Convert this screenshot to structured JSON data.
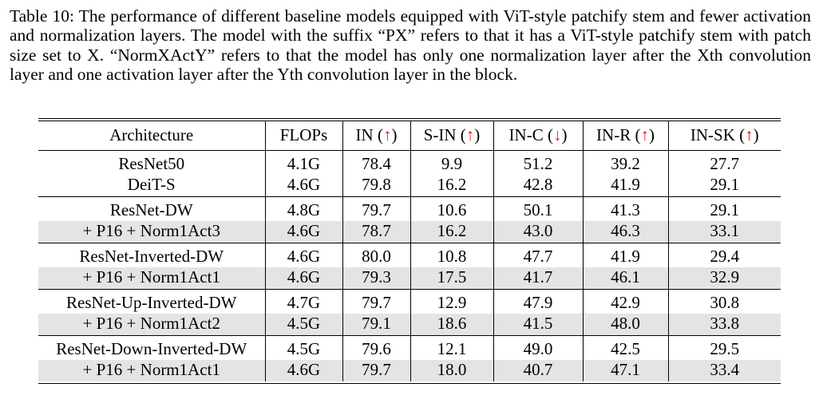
{
  "caption": {
    "label": "Table 10:",
    "text": " The performance of different baseline models equipped with ViT-style patchify stem and fewer activation and normalization layers. The model with the suffix “PX” refers to that it has a ViT-style patchify stem with patch size set to X. “NormXActY” refers to that the model has only one normalization layer after the Xth convolution layer and one activation layer after the Yth convolution layer in the block."
  },
  "table": {
    "headers": [
      {
        "label": "Architecture",
        "arrow": ""
      },
      {
        "label": "FLOPs",
        "arrow": ""
      },
      {
        "label": "IN (",
        "arrow": "↑",
        "close": ")"
      },
      {
        "label": "S-IN (",
        "arrow": "↑",
        "close": ")"
      },
      {
        "label": "IN-C (",
        "arrow": "↓",
        "close": ")"
      },
      {
        "label": "IN-R (",
        "arrow": "↑",
        "close": ")"
      },
      {
        "label": "IN-SK (",
        "arrow": "↑",
        "close": ")"
      }
    ],
    "groups": [
      {
        "rows": [
          {
            "shaded": false,
            "cells": [
              "ResNet50",
              "4.1G",
              "78.4",
              "9.9",
              "51.2",
              "39.2",
              "27.7"
            ]
          },
          {
            "shaded": false,
            "cells": [
              "DeiT-S",
              "4.6G",
              "79.8",
              "16.2",
              "42.8",
              "41.9",
              "29.1"
            ]
          }
        ]
      },
      {
        "rows": [
          {
            "shaded": false,
            "cells": [
              "ResNet-DW",
              "4.8G",
              "79.7",
              "10.6",
              "50.1",
              "41.3",
              "29.1"
            ]
          },
          {
            "shaded": true,
            "cells": [
              "+ P16 + Norm1Act3",
              "4.6G",
              "78.7",
              "16.2",
              "43.0",
              "46.3",
              "33.1"
            ]
          }
        ]
      },
      {
        "rows": [
          {
            "shaded": false,
            "cells": [
              "ResNet-Inverted-DW",
              "4.6G",
              "80.0",
              "10.8",
              "47.7",
              "41.9",
              "29.4"
            ]
          },
          {
            "shaded": true,
            "cells": [
              "+ P16 + Norm1Act1",
              "4.6G",
              "79.3",
              "17.5",
              "41.7",
              "46.1",
              "32.9"
            ]
          }
        ]
      },
      {
        "rows": [
          {
            "shaded": false,
            "cells": [
              "ResNet-Up-Inverted-DW",
              "4.7G",
              "79.7",
              "12.9",
              "47.9",
              "42.9",
              "30.8"
            ]
          },
          {
            "shaded": true,
            "cells": [
              "+ P16 + Norm1Act2",
              "4.5G",
              "79.1",
              "18.6",
              "41.5",
              "48.0",
              "33.8"
            ]
          }
        ]
      },
      {
        "rows": [
          {
            "shaded": false,
            "cells": [
              "ResNet-Down-Inverted-DW",
              "4.5G",
              "79.6",
              "12.1",
              "49.0",
              "42.5",
              "29.5"
            ]
          },
          {
            "shaded": true,
            "cells": [
              "+ P16 + Norm1Act1",
              "4.6G",
              "79.7",
              "18.0",
              "40.7",
              "47.1",
              "33.4"
            ]
          }
        ]
      }
    ]
  }
}
